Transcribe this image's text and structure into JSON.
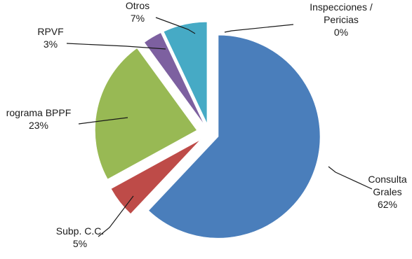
{
  "chart_data": {
    "type": "pie",
    "exploded": true,
    "legend": "none",
    "slices": [
      {
        "label_lines": [
          "Consulta",
          "Grales"
        ],
        "percent_label": "62%",
        "value": 62,
        "color": "#4a7ebb"
      },
      {
        "label_lines": [
          "Subp. C.C."
        ],
        "percent_label": "5%",
        "value": 5,
        "color": "#be4b48"
      },
      {
        "label_lines": [
          "rograma BPPF"
        ],
        "percent_label": "23%",
        "value": 23,
        "color": "#98b954"
      },
      {
        "label_lines": [
          "RPVF"
        ],
        "percent_label": "3%",
        "value": 3,
        "color": "#7d60a0"
      },
      {
        "label_lines": [
          "Otros"
        ],
        "percent_label": "7%",
        "value": 7,
        "color": "#46aac5"
      },
      {
        "label_lines": [
          "Inspecciones /",
          "Pericias"
        ],
        "percent_label": "0%",
        "value": 0,
        "color": "#f79646"
      }
    ]
  }
}
